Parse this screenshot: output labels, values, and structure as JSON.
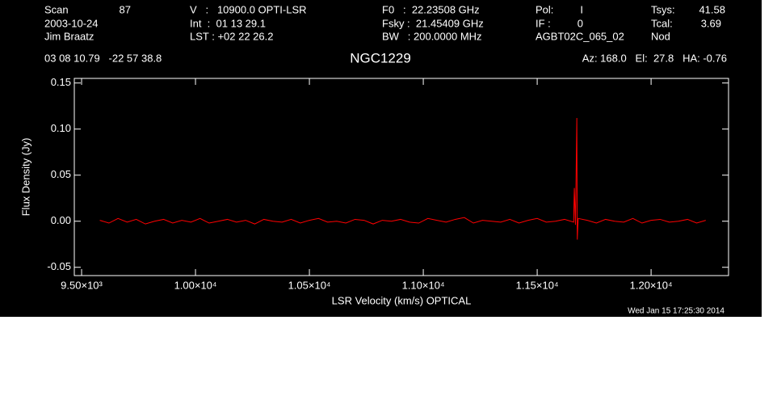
{
  "chart_data": {
    "type": "line",
    "title": "NGC1229",
    "header": [
      "Scan",
      "87",
      "V   :   10900.0 OPTI-LSR",
      "F0   :  22.23508 GHz",
      "Pol:",
      "I",
      "Tsys:",
      "41.58",
      "2003-10-24",
      "Int  :  01 13 29.1",
      "Fsky :  21.45409 GHz",
      "IF :",
      "0",
      "Tcal:",
      "3.69",
      "Jim Braatz",
      "LST : +02 22 26.2",
      "BW   : 200.0000 MHz",
      "AGBT02C_065_02",
      "Nod",
      "03 08 10.79   -22 57 38.8",
      "Az: 168.0   El:  27.8   HA: -0.76"
    ],
    "footer": "Wed Jan 15 17:25:30 2014",
    "x_label": "LSR Velocity (km/s) OPTICAL",
    "y_label": "Flux Density (Jy)",
    "xlim": [
      9468,
      12340
    ],
    "ylim": [
      -0.059,
      0.155
    ],
    "xticks": [
      {
        "value": 9500,
        "label": "9.50×10³"
      },
      {
        "value": 10000,
        "label": "1.00×10⁴"
      },
      {
        "value": 10500,
        "label": "1.05×10⁴"
      },
      {
        "value": 11000,
        "label": "1.10×10⁴"
      },
      {
        "value": 11500,
        "label": "1.15×10⁴"
      },
      {
        "value": 12000,
        "label": "1.20×10⁴"
      }
    ],
    "yticks": [
      0.15,
      {
        "value": 0.1,
        "label": "0.10"
      },
      0.05,
      {
        "value": 0,
        "label": "0.00"
      },
      -0.05
    ],
    "series": [
      {
        "color": "#ff0000",
        "x": [
          9580,
          9620,
          9660,
          9700,
          9740,
          9780,
          9820,
          9860,
          9900,
          9940,
          9980,
          10020,
          10060,
          10100,
          10140,
          10180,
          10220,
          10260,
          10300,
          10340,
          10380,
          10420,
          10460,
          10500,
          10540,
          10580,
          10620,
          10660,
          10700,
          10740,
          10780,
          10820,
          10860,
          10900,
          10940,
          10980,
          11020,
          11060,
          11100,
          11140,
          11180,
          11220,
          11260,
          11300,
          11340,
          11380,
          11420,
          11460,
          11500,
          11540,
          11580,
          11620,
          11660,
          11663,
          11668,
          11674,
          11676,
          11680,
          11720,
          11760,
          11800,
          11840,
          11880,
          11920,
          11960,
          12000,
          12040,
          12080,
          12120,
          12160,
          12200,
          12240
        ],
        "values": [
          0.001,
          -0.002,
          0.003,
          -0.001,
          0.002,
          -0.003,
          0,
          0.002,
          -0.002,
          0.001,
          -0.001,
          0.003,
          -0.002,
          0,
          0.002,
          -0.001,
          0.001,
          -0.003,
          0.002,
          0,
          -0.001,
          0.002,
          -0.002,
          0.001,
          0.003,
          -0.001,
          0,
          -0.002,
          0.002,
          0.001,
          -0.003,
          0.001,
          0,
          0.002,
          -0.001,
          -0.002,
          0.003,
          0.001,
          -0.001,
          0.002,
          0.004,
          -0.002,
          0.001,
          0,
          -0.001,
          0.002,
          -0.002,
          0.001,
          0.003,
          -0.001,
          0,
          0.002,
          -0.001,
          0.036,
          -0.004,
          0.112,
          -0.02,
          0.003,
          0.001,
          -0.002,
          0.002,
          0,
          -0.001,
          0.003,
          -0.002,
          0.001,
          0.002,
          -0.001,
          0,
          0.002,
          -0.002,
          0.001
        ]
      }
    ]
  }
}
